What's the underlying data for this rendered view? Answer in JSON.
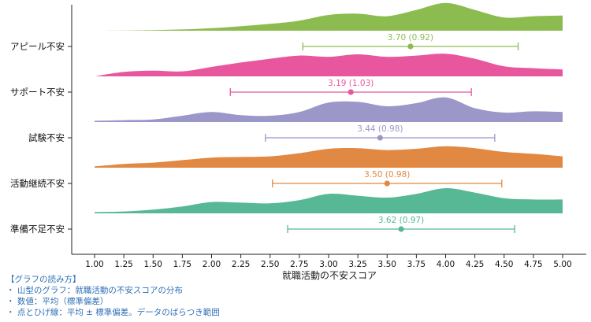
{
  "chart_data": {
    "type": "ridgeline",
    "xlabel": "就職活動の不安スコア",
    "xlim": [
      1.0,
      5.0
    ],
    "xticks": [
      "1.00",
      "1.25",
      "1.50",
      "1.75",
      "2.00",
      "2.25",
      "2.50",
      "2.75",
      "3.00",
      "3.25",
      "3.50",
      "3.75",
      "4.00",
      "4.25",
      "4.50",
      "4.75",
      "5.00"
    ],
    "series": [
      {
        "name": "アピール不安",
        "color": "#8cbc4f",
        "mean": 3.7,
        "sd": 0.92,
        "label": "3.70 (0.92)",
        "density_x": [
          1.0,
          1.5,
          2.0,
          2.5,
          2.75,
          3.0,
          3.25,
          3.5,
          3.75,
          4.0,
          4.25,
          4.5,
          4.75,
          5.0
        ],
        "density_y": [
          0.0,
          0.02,
          0.08,
          0.22,
          0.32,
          0.5,
          0.54,
          0.46,
          0.66,
          0.88,
          0.66,
          0.42,
          0.46,
          0.48
        ]
      },
      {
        "name": "サポート不安",
        "color": "#e8579d",
        "mean": 3.19,
        "sd": 1.03,
        "label": "3.19 (1.03)",
        "density_x": [
          1.0,
          1.25,
          1.5,
          1.75,
          2.0,
          2.25,
          2.5,
          2.75,
          3.0,
          3.25,
          3.5,
          3.75,
          4.0,
          4.25,
          4.5,
          4.75,
          5.0
        ],
        "density_y": [
          0.0,
          0.14,
          0.18,
          0.16,
          0.3,
          0.44,
          0.56,
          0.66,
          0.62,
          0.7,
          0.62,
          0.66,
          0.72,
          0.56,
          0.32,
          0.26,
          0.22
        ]
      },
      {
        "name": "試験不安",
        "color": "#9b97c9",
        "mean": 3.44,
        "sd": 0.98,
        "label": "3.44 (0.98)",
        "density_x": [
          1.0,
          1.25,
          1.5,
          1.75,
          2.0,
          2.25,
          2.5,
          2.75,
          3.0,
          3.25,
          3.5,
          3.75,
          4.0,
          4.25,
          4.5,
          4.75,
          5.0
        ],
        "density_y": [
          0.04,
          0.06,
          0.08,
          0.2,
          0.32,
          0.22,
          0.2,
          0.32,
          0.62,
          0.64,
          0.5,
          0.6,
          0.78,
          0.44,
          0.3,
          0.34,
          0.32
        ]
      },
      {
        "name": "活動継続不安",
        "color": "#e18842",
        "mean": 3.5,
        "sd": 0.98,
        "label": "3.50 (0.98)",
        "density_x": [
          1.0,
          1.25,
          1.5,
          1.75,
          2.0,
          2.25,
          2.5,
          2.75,
          3.0,
          3.25,
          3.5,
          3.75,
          4.0,
          4.25,
          4.5,
          4.75,
          5.0
        ],
        "density_y": [
          0.04,
          0.12,
          0.16,
          0.24,
          0.32,
          0.34,
          0.36,
          0.46,
          0.6,
          0.62,
          0.56,
          0.6,
          0.68,
          0.62,
          0.5,
          0.44,
          0.36
        ]
      },
      {
        "name": "準備不足不安",
        "color": "#57b895",
        "mean": 3.62,
        "sd": 0.97,
        "label": "3.62 (0.97)",
        "density_x": [
          1.0,
          1.25,
          1.5,
          1.75,
          2.0,
          2.25,
          2.5,
          2.75,
          3.0,
          3.25,
          3.5,
          3.75,
          4.0,
          4.25,
          4.5,
          4.75,
          5.0
        ],
        "density_y": [
          0.04,
          0.06,
          0.12,
          0.22,
          0.36,
          0.34,
          0.32,
          0.42,
          0.62,
          0.56,
          0.5,
          0.62,
          0.8,
          0.66,
          0.48,
          0.44,
          0.44
        ]
      }
    ]
  },
  "notes": {
    "title": "【グラフの読み方】",
    "items": [
      "・ 山型のグラフ：就職活動の不安スコアの分布",
      "・ 数値：平均（標準偏差）",
      "・ 点とひげ線：平均 ± 標準偏差。データのばらつき範囲"
    ]
  }
}
